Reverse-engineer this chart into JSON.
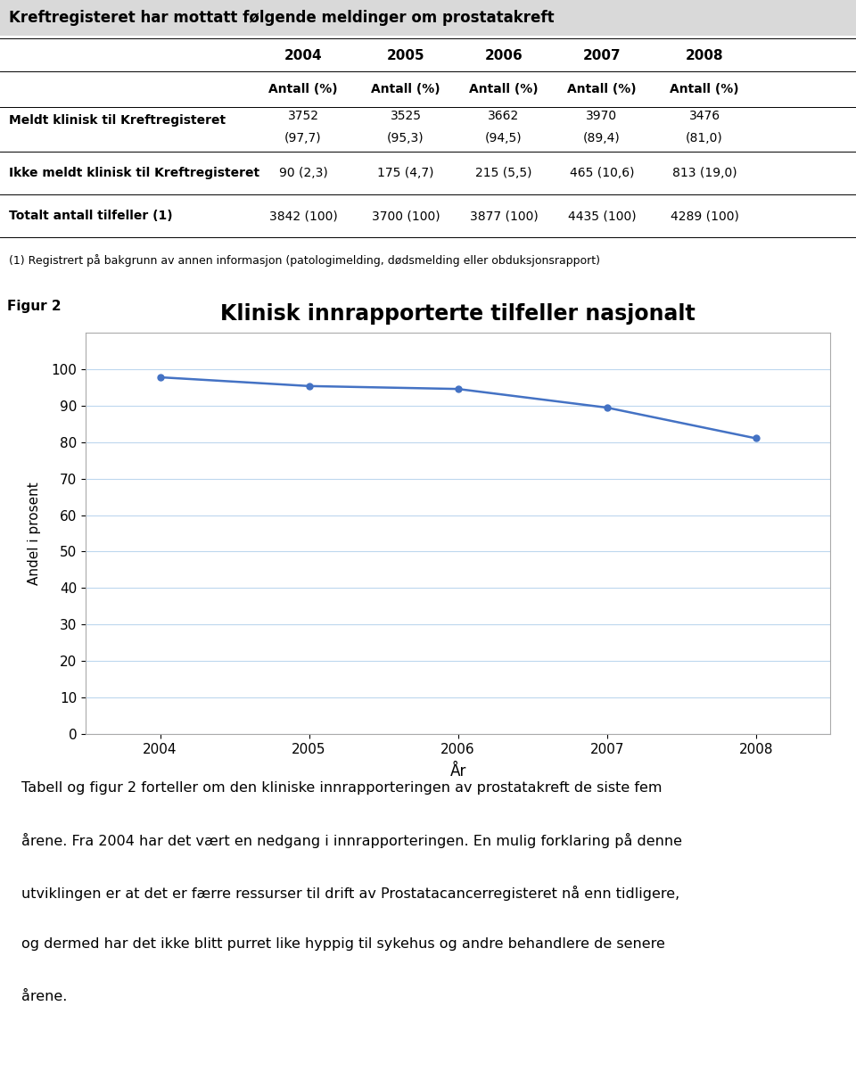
{
  "title_table": "Kreftregisteret har mottatt følgende meldinger om prostatakreft",
  "years": [
    "2004",
    "2005",
    "2006",
    "2007",
    "2008"
  ],
  "col_header1": "Antall (%)",
  "row1_label": "Meldt klinisk til Kreftregisteret",
  "row1_values": [
    "3752",
    "3525",
    "3662",
    "3970",
    "3476"
  ],
  "row1_pct": [
    "(97,7)",
    "(95,3)",
    "(94,5)",
    "(89,4)",
    "(81,0)"
  ],
  "row2_label": "Ikke meldt klinisk til Kreftregisteret",
  "row2_values": [
    "90 (2,3)",
    "175 (4,7)",
    "215 (5,5)",
    "465 (10,6)",
    "813 (19,0)"
  ],
  "row3_label": "Totalt antall tilfeller (1)",
  "row3_values": [
    "3842 (100)",
    "3700 (100)",
    "3877 (100)",
    "4435 (100)",
    "4289 (100)"
  ],
  "footnote": "(1) Registrert på bakgrunn av annen informasjon (patologimelding, dødsmelding eller obduksjonsrapport)",
  "figur_label": "Figur 2",
  "chart_title": "Klinisk innrapporterte tilfeller nasjonalt",
  "chart_years": [
    2004,
    2005,
    2006,
    2007,
    2008
  ],
  "chart_values": [
    97.7,
    95.3,
    94.5,
    89.4,
    81.0
  ],
  "ylabel": "Andel i prosent",
  "xlabel": "År",
  "yticks": [
    0,
    10,
    20,
    30,
    40,
    50,
    60,
    70,
    80,
    90,
    100
  ],
  "line_color": "#4472C4",
  "marker_color": "#4472C4",
  "grid_color": "#BDD7EE",
  "chart_bg": "#FFFFFF",
  "border_color": "#AAAAAA",
  "title_bg": "#D9D9D9",
  "paragraph_line1": "Tabell og figur 2 forteller om den kliniske innrapporteringen av prostatakreft de siste fem",
  "paragraph_line2": "årene. Fra 2004 har det vært en nedgang i innrapporteringen. En mulig forklaring på denne",
  "paragraph_line3": "utviklingen er at det er færre ressurser til drift av Prostatacancerregisteret nå enn tidligere,",
  "paragraph_line4": "og dermed har det ikke blitt purret like hyppig til sykehus og andre behandlere de senere",
  "paragraph_line5": "årene."
}
